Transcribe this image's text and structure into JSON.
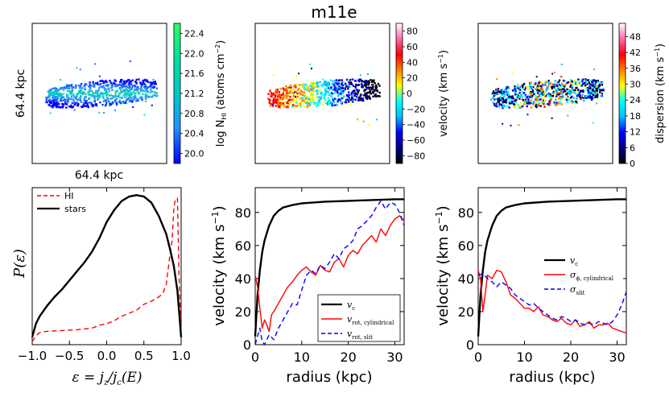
{
  "figure": {
    "title": "m11e"
  },
  "colors": {
    "black": "#000000",
    "red": "#ff0000",
    "blue": "#0000ff"
  },
  "map_panels": [
    {
      "name": "column-density-map",
      "xlabel": "64.4 kpc",
      "ylabel": "64.4 kpc",
      "colorbar": {
        "label_main": "log N",
        "label_sub": "HI",
        "label_tail": " (atoms cm",
        "label_exp": "−2",
        "label_close": ")",
        "ticks": [
          "22.4",
          "22.0",
          "21.6",
          "21.2",
          "20.8",
          "20.4",
          "20.0"
        ],
        "tick_values": [
          22.4,
          22.0,
          21.6,
          21.2,
          20.8,
          20.4,
          20.0
        ],
        "range": [
          19.8,
          22.6
        ],
        "colormap": [
          "#0000ff",
          "#1e90ff",
          "#00c8c8",
          "#00e0a0",
          "#30ff60"
        ]
      }
    },
    {
      "name": "velocity-map",
      "colorbar": {
        "label_main": "velocity (km s",
        "label_exp": "−1",
        "label_close": ")",
        "ticks": [
          "80",
          "60",
          "40",
          "20",
          "0",
          "−20",
          "−40",
          "−60",
          "−80"
        ],
        "tick_values": [
          80,
          60,
          40,
          20,
          0,
          -20,
          -40,
          -60,
          -80
        ],
        "range": [
          -90,
          90
        ],
        "colormap": [
          "#000000",
          "#00008b",
          "#0000ff",
          "#00bfff",
          "#00ffff",
          "#ffff00",
          "#ff8000",
          "#ff0000",
          "#ff69b4",
          "#ffffff"
        ]
      }
    },
    {
      "name": "dispersion-map",
      "colorbar": {
        "label_main": "dispersion (km s",
        "label_exp": "−1",
        "label_close": ")",
        "ticks": [
          "48",
          "42",
          "36",
          "30",
          "24",
          "18",
          "12",
          "6",
          "0"
        ],
        "tick_values": [
          48,
          42,
          36,
          30,
          24,
          18,
          12,
          6,
          0
        ],
        "range": [
          0,
          53
        ],
        "colormap": [
          "#000000",
          "#00008b",
          "#0000ff",
          "#00bfff",
          "#00ffff",
          "#ffff00",
          "#ff8000",
          "#ff0000",
          "#ff69b4",
          "#ffffff"
        ]
      }
    }
  ],
  "chart_data": [
    {
      "type": "line",
      "name": "circularity-distribution",
      "ylabel": "P(ε)",
      "xlabel": "ε = j_z / j_c(E)",
      "xlabel_parts": {
        "eps": "ε = j",
        "z": "z",
        "mid": "/j",
        "c": "c",
        "tail": "(E)"
      },
      "ylabel_parts": {
        "p": "P(",
        "eps": "ε",
        "close": ")"
      },
      "xlim": [
        -1.0,
        1.0
      ],
      "ylim": [
        0,
        1.05
      ],
      "xticks": [
        "−1.0",
        "−0.5",
        "0.0",
        "0.5",
        "1.0"
      ],
      "xtick_values": [
        -1.0,
        -0.5,
        0.0,
        0.5,
        1.0
      ],
      "legend": {
        "position": "top-left",
        "entries": [
          "HI",
          "stars"
        ]
      },
      "series": [
        {
          "name": "HI",
          "color": "#ff0000",
          "dash": "dashed",
          "x": [
            -1.0,
            -0.95,
            -0.9,
            -0.8,
            -0.6,
            -0.4,
            -0.2,
            -0.1,
            0.0,
            0.1,
            0.2,
            0.3,
            0.4,
            0.5,
            0.6,
            0.7,
            0.75,
            0.8,
            0.82,
            0.85,
            0.88,
            0.9,
            0.92,
            0.95,
            0.97,
            1.0
          ],
          "y": [
            0.02,
            0.06,
            0.08,
            0.09,
            0.095,
            0.1,
            0.11,
            0.13,
            0.14,
            0.16,
            0.19,
            0.21,
            0.23,
            0.27,
            0.29,
            0.32,
            0.34,
            0.4,
            0.48,
            0.6,
            0.7,
            0.9,
            0.97,
            0.98,
            0.5,
            0.05
          ]
        },
        {
          "name": "stars",
          "color": "#000000",
          "dash": "solid",
          "x": [
            -1.0,
            -0.95,
            -0.9,
            -0.8,
            -0.7,
            -0.6,
            -0.5,
            -0.4,
            -0.3,
            -0.2,
            -0.1,
            0.0,
            0.1,
            0.2,
            0.3,
            0.4,
            0.5,
            0.6,
            0.7,
            0.8,
            0.85,
            0.9,
            0.95,
            1.0
          ],
          "y": [
            0.05,
            0.14,
            0.19,
            0.26,
            0.32,
            0.37,
            0.43,
            0.49,
            0.55,
            0.62,
            0.71,
            0.82,
            0.9,
            0.96,
            0.99,
            1.0,
            0.99,
            0.95,
            0.86,
            0.74,
            0.64,
            0.53,
            0.36,
            0.05
          ]
        }
      ]
    },
    {
      "type": "line",
      "name": "rotation-curve",
      "xlabel": "radius (kpc)",
      "ylabel": "velocity (km s⁻¹)",
      "ylabel_parts": {
        "main": "velocity (km s",
        "exp": "−1",
        "close": ")"
      },
      "xlim": [
        0,
        32
      ],
      "ylim": [
        0,
        95
      ],
      "xticks": [
        "0",
        "10",
        "20",
        "30"
      ],
      "xtick_values": [
        0,
        10,
        20,
        30
      ],
      "yticks": [
        "0",
        "20",
        "40",
        "60",
        "80"
      ],
      "ytick_values": [
        0,
        20,
        40,
        60,
        80
      ],
      "legend": {
        "position": "lower-right",
        "entries": [
          {
            "main": "v",
            "sub": "c"
          },
          {
            "main": "v",
            "sub": "rot, cylindrical"
          },
          {
            "main": "v",
            "sub": "rot, slit"
          }
        ]
      },
      "series": [
        {
          "name": "v_c",
          "color": "#000000",
          "dash": "solid",
          "x": [
            0,
            0.5,
            1,
            1.5,
            2,
            3,
            4,
            5,
            6,
            8,
            10,
            15,
            20,
            25,
            30,
            32
          ],
          "y": [
            5,
            30,
            45,
            56,
            63,
            72,
            78,
            81,
            83,
            84.5,
            85.5,
            86.5,
            87,
            87.5,
            88,
            88
          ]
        },
        {
          "name": "v_rot, cylindrical",
          "color": "#ff0000",
          "dash": "solid",
          "x": [
            0,
            0.5,
            1,
            1.5,
            2,
            2.5,
            3,
            3.5,
            4,
            5,
            6,
            7,
            8,
            9,
            10,
            11,
            12,
            13,
            14,
            15,
            16,
            17,
            18,
            19,
            20,
            21,
            22,
            23,
            24,
            25,
            26,
            27,
            28,
            29,
            30,
            31,
            32
          ],
          "y": [
            42,
            35,
            22,
            10,
            15,
            12,
            8,
            18,
            20,
            25,
            30,
            35,
            38,
            42,
            45,
            47,
            44,
            42,
            48,
            45,
            44,
            50,
            52,
            47,
            54,
            57,
            55,
            60,
            63,
            66,
            62,
            70,
            66,
            72,
            76,
            78,
            75
          ]
        },
        {
          "name": "v_rot, slit",
          "color": "#0000ff",
          "dash": "dashed",
          "x": [
            0,
            0.5,
            1,
            1.5,
            2,
            3,
            4,
            5,
            6,
            7,
            8,
            9,
            10,
            11,
            12,
            13,
            14,
            15,
            16,
            17,
            18,
            19,
            20,
            21,
            22,
            23,
            24,
            25,
            26,
            27,
            28,
            29,
            30,
            31,
            32
          ],
          "y": [
            0,
            5,
            10,
            2,
            0,
            6,
            3,
            10,
            15,
            20,
            25,
            24,
            33,
            42,
            45,
            43,
            48,
            46,
            50,
            55,
            52,
            58,
            60,
            63,
            70,
            72,
            75,
            78,
            83,
            87,
            82,
            86,
            85,
            80,
            72
          ]
        }
      ]
    },
    {
      "type": "line",
      "name": "dispersion-profile",
      "xlabel": "radius (kpc)",
      "ylabel": "velocity (km s⁻¹)",
      "ylabel_parts": {
        "main": "velocity (km s",
        "exp": "−1",
        "close": ")"
      },
      "xlim": [
        0,
        32
      ],
      "ylim": [
        0,
        95
      ],
      "xticks": [
        "0",
        "10",
        "20",
        "30"
      ],
      "xtick_values": [
        0,
        10,
        20,
        30
      ],
      "yticks": [
        "0",
        "20",
        "40",
        "60",
        "80"
      ],
      "ytick_values": [
        0,
        20,
        40,
        60,
        80
      ],
      "legend": {
        "position": "center-right",
        "entries": [
          {
            "main": "v",
            "sub": "c"
          },
          {
            "main": "σ",
            "sub": "ϕ, cylindrical"
          },
          {
            "main": "σ",
            "sub": "slit"
          }
        ]
      },
      "series": [
        {
          "name": "v_c",
          "color": "#000000",
          "dash": "solid",
          "x": [
            0,
            0.5,
            1,
            1.5,
            2,
            3,
            4,
            5,
            6,
            8,
            10,
            15,
            20,
            25,
            30,
            32
          ],
          "y": [
            5,
            30,
            45,
            56,
            63,
            72,
            78,
            81,
            83,
            84.5,
            85.5,
            86.5,
            87,
            87.5,
            88,
            88
          ]
        },
        {
          "name": "sigma_phi, cylindrical",
          "color": "#ff0000",
          "dash": "solid",
          "x": [
            0,
            0.5,
            1,
            1.5,
            2,
            3,
            4,
            5,
            6,
            7,
            8,
            9,
            10,
            11,
            12,
            13,
            14,
            15,
            16,
            17,
            18,
            19,
            20,
            21,
            22,
            23,
            24,
            25,
            26,
            27,
            28,
            29,
            30,
            31,
            32
          ],
          "y": [
            45,
            40,
            20,
            30,
            42,
            40,
            45,
            44,
            38,
            30,
            28,
            25,
            22,
            22,
            20,
            23,
            18,
            17,
            15,
            14,
            16,
            13,
            12,
            15,
            11,
            12,
            14,
            10,
            12,
            12,
            13,
            10,
            9,
            8,
            7
          ]
        },
        {
          "name": "sigma_slit",
          "color": "#0000ff",
          "dash": "dashed",
          "x": [
            0,
            1,
            2,
            3,
            4,
            5,
            6,
            7,
            8,
            9,
            10,
            11,
            12,
            13,
            14,
            15,
            16,
            17,
            18,
            19,
            20,
            21,
            22,
            23,
            24,
            25,
            26,
            27,
            28,
            29,
            30,
            31,
            32
          ],
          "y": [
            42,
            43,
            40,
            38,
            35,
            38,
            36,
            34,
            30,
            28,
            26,
            24,
            25,
            22,
            20,
            18,
            16,
            15,
            17,
            16,
            14,
            15,
            13,
            12,
            13,
            12,
            14,
            13,
            12,
            14,
            18,
            24,
            32
          ]
        }
      ]
    }
  ]
}
